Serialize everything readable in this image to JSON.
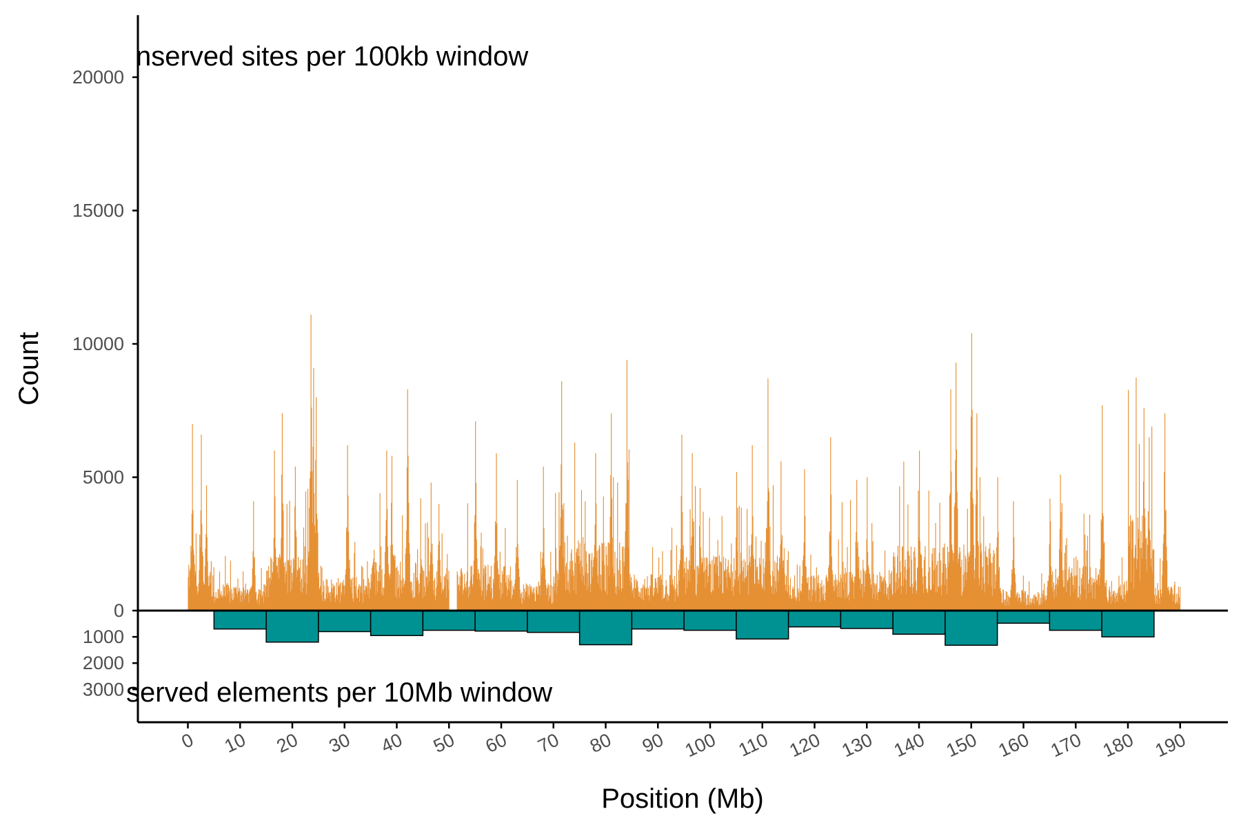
{
  "chart_data": {
    "type": "bar",
    "title": "",
    "xlabel": "Position (Mb)",
    "ylabel": "Count",
    "grid": false,
    "legend": "none",
    "x_ticks": [
      0,
      10,
      20,
      30,
      40,
      50,
      60,
      70,
      80,
      90,
      100,
      110,
      120,
      130,
      140,
      150,
      160,
      170,
      180,
      190
    ],
    "y_ticks_top": [
      0,
      5000,
      10000,
      15000,
      20000
    ],
    "y_ticks_bottom": [
      1000,
      2000,
      3000
    ],
    "xlim": [
      -9.5,
      200
    ],
    "ylim_top": [
      0,
      22000
    ],
    "ylim_bottom": [
      0,
      4200
    ],
    "annotations": {
      "top": "nserved sites per 100kb window",
      "bottom": "served elements per 10Mb window"
    },
    "colors": {
      "sites": "#E69034",
      "elements": "#009292",
      "elements_outline": "#000000"
    },
    "series": [
      {
        "bin_width_mb": 0.1,
        "x_range": [
          0,
          190
        ],
        "peaks": [
          [
            0.8,
            7000
          ],
          [
            2.5,
            6600
          ],
          [
            3.5,
            4700
          ],
          [
            12.5,
            4100
          ],
          [
            16.5,
            6000
          ],
          [
            18,
            7400
          ],
          [
            20.5,
            5400
          ],
          [
            23.5,
            11100
          ],
          [
            24,
            9100
          ],
          [
            24.5,
            8000
          ],
          [
            30.5,
            6200
          ],
          [
            38,
            6000
          ],
          [
            39,
            5800
          ],
          [
            42,
            8300
          ],
          [
            46.5,
            4800
          ],
          [
            48,
            4000
          ],
          [
            55,
            7100
          ],
          [
            59,
            5900
          ],
          [
            63,
            4900
          ],
          [
            68,
            5400
          ],
          [
            71.5,
            8600
          ],
          [
            78,
            5900
          ],
          [
            81,
            7400
          ],
          [
            84,
            9400
          ],
          [
            94.5,
            6600
          ],
          [
            96.5,
            5900
          ],
          [
            98,
            4600
          ],
          [
            105,
            5200
          ],
          [
            108,
            6200
          ],
          [
            111,
            8700
          ],
          [
            113.5,
            5600
          ],
          [
            118,
            5300
          ],
          [
            123,
            6500
          ],
          [
            128,
            4900
          ],
          [
            130,
            5000
          ],
          [
            140,
            6000
          ],
          [
            146,
            8300
          ],
          [
            147,
            9300
          ],
          [
            150,
            10400
          ],
          [
            151,
            7400
          ],
          [
            155,
            5000
          ],
          [
            158,
            4100
          ],
          [
            165,
            4200
          ],
          [
            167,
            5100
          ],
          [
            175,
            7700
          ],
          [
            183,
            7600
          ],
          [
            184,
            6500
          ],
          [
            187,
            7400
          ]
        ],
        "base_segments": [
          [
            0,
            5,
            1500
          ],
          [
            5,
            15,
            900
          ],
          [
            15,
            25,
            1800
          ],
          [
            25,
            35,
            1100
          ],
          [
            35,
            45,
            1700
          ],
          [
            45,
            50,
            1400
          ],
          [
            51.5,
            62,
            1500
          ],
          [
            62,
            70,
            900
          ],
          [
            70,
            85,
            2300
          ],
          [
            85,
            95,
            1200
          ],
          [
            95,
            115,
            1800
          ],
          [
            115,
            125,
            1200
          ],
          [
            125,
            135,
            1400
          ],
          [
            135,
            155,
            2200
          ],
          [
            155,
            165,
            700
          ],
          [
            165,
            175,
            1500
          ],
          [
            175,
            180,
            1000
          ],
          [
            180,
            185,
            3200
          ],
          [
            185,
            190,
            900
          ]
        ],
        "gaps": [
          [
            50,
            51.5
          ]
        ]
      },
      {
        "bins": [
          [
            5,
            15,
            700
          ],
          [
            15,
            25,
            1200
          ],
          [
            25,
            35,
            800
          ],
          [
            35,
            45,
            950
          ],
          [
            45,
            55,
            750
          ],
          [
            55,
            65,
            780
          ],
          [
            65,
            75,
            830
          ],
          [
            75,
            85,
            1300
          ],
          [
            85,
            95,
            700
          ],
          [
            95,
            105,
            750
          ],
          [
            105,
            115,
            1080
          ],
          [
            115,
            125,
            620
          ],
          [
            125,
            135,
            680
          ],
          [
            135,
            145,
            900
          ],
          [
            145,
            155,
            1320
          ],
          [
            155,
            165,
            480
          ],
          [
            165,
            175,
            750
          ],
          [
            175,
            185,
            1000
          ]
        ]
      }
    ]
  }
}
